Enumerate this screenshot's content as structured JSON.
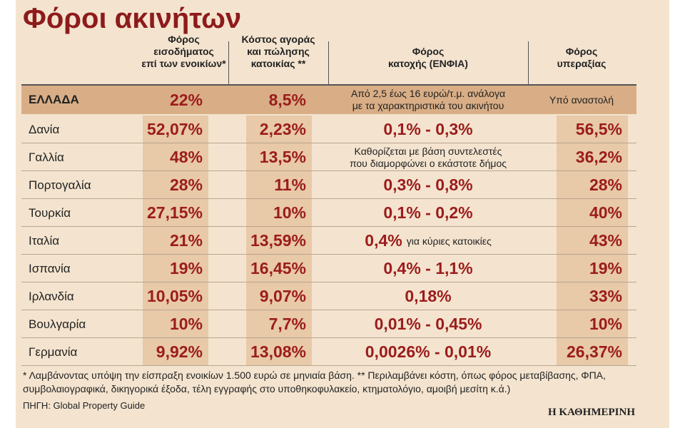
{
  "header": {
    "title": "Φόροι ακινήτων"
  },
  "table": {
    "columns": [
      "Φόρος\nεισοδήματος\nεπί των ενοικίων*",
      "Κόστος αγοράς\nκαι πώλησης\nκατοικίας **",
      "Φόρος\nκατοχής (ΕΝΦΙΑ)",
      "Φόρος\nυπεραξίας"
    ],
    "rows": [
      {
        "country": "ΕΛΛΑΔΑ",
        "values": [
          "22%",
          "8,5%",
          "Από 2,5 έως 16 ευρώ/τ.μ. ανάλογα\nμε τα χαρακτηριστικά του ακινήτου",
          "Υπό αναστολή"
        ]
      },
      {
        "country": "Δανία",
        "values": [
          "52,07%",
          "2,23%",
          "0,1% - 0,3%",
          "56,5%"
        ]
      },
      {
        "country": "Γαλλία",
        "values": [
          "48%",
          "13,5%",
          "Καθορίζεται με βάση συντελεστές\nπου διαμορφώνει ο εκάστοτε δήμος",
          "36,2%"
        ]
      },
      {
        "country": "Πορτογαλία",
        "values": [
          "28%",
          "11%",
          "0,3% - 0,8%",
          "28%"
        ]
      },
      {
        "country": "Τουρκία",
        "values": [
          "27,15%",
          "10%",
          "0,1% - 0,2%",
          "40%"
        ]
      },
      {
        "country": "Ιταλία",
        "values": [
          "21%",
          "13,59%",
          [
            "0,4%",
            "για κύριες κατοικίες"
          ],
          "43%"
        ]
      },
      {
        "country": "Ισπανία",
        "values": [
          "19%",
          "16,45%",
          "0,4% - 1,1%",
          "19%"
        ]
      },
      {
        "country": "Ιρλανδία",
        "values": [
          "10,05%",
          "9,07%",
          "0,18%",
          "33%"
        ]
      },
      {
        "country": "Βουλγαρία",
        "values": [
          "10%",
          "7,7%",
          "0,01% - 0,45%",
          "10%"
        ]
      },
      {
        "country": "Γερμανία",
        "values": [
          "9,92%",
          "13,08%",
          "0,0026% -  0,01%",
          "26,37%"
        ]
      }
    ]
  },
  "footer": {
    "note": "* Λαμβάνοντας υπόψη την είσπραξη ενοικίων 1.500 ευρώ σε μηνιαία βάση. ** Περιλαμβάνει κόστη, όπως φόρος μεταβίβασης, ΦΠΑ, συμβολαιογραφικά, δικηγορικά έξοδα, τέλη εγγραφής στο υποθηκοφυλακείο, κτηματολόγιο, αμοιβή μεσίτη κ.ά.)",
    "source": "ΠΗΓΗ: Global Property Guide",
    "brand": "Η ΚΑΘΗΜΕΡΙΝΗ"
  }
}
